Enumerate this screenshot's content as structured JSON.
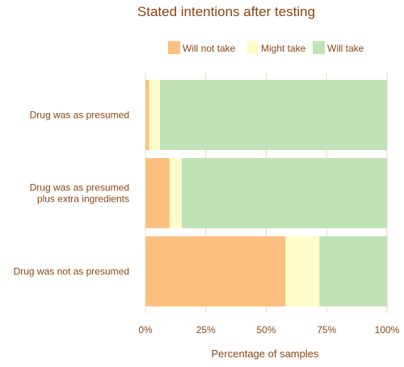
{
  "chart_data": {
    "type": "bar",
    "orientation": "horizontal",
    "stacked": true,
    "normalized": true,
    "title": "Stated intentions after testing",
    "xlabel": "Percentage of samples",
    "ylabel": "",
    "xlim": [
      0,
      100
    ],
    "x_ticks": [
      "0%",
      "25%",
      "50%",
      "75%",
      "100%"
    ],
    "x_tick_values": [
      0,
      25,
      50,
      75,
      100
    ],
    "grid": true,
    "legend_position": "top-right",
    "categories": [
      [
        "Drug was as presumed"
      ],
      [
        "Drug was as presumed",
        "plus extra ingredients"
      ],
      [
        "Drug was not as presumed"
      ]
    ],
    "series": [
      {
        "name": "Will not take",
        "color": "#fdbf80",
        "values": [
          1.5,
          10,
          58
        ]
      },
      {
        "name": "Might take",
        "color": "#fffccc",
        "values": [
          4.5,
          5,
          14
        ]
      },
      {
        "name": "Will take",
        "color": "#bfe3b6",
        "values": [
          94,
          85,
          28
        ]
      }
    ],
    "colors": {
      "text": "#8b4513",
      "grid": "#e6d9c6"
    }
  }
}
